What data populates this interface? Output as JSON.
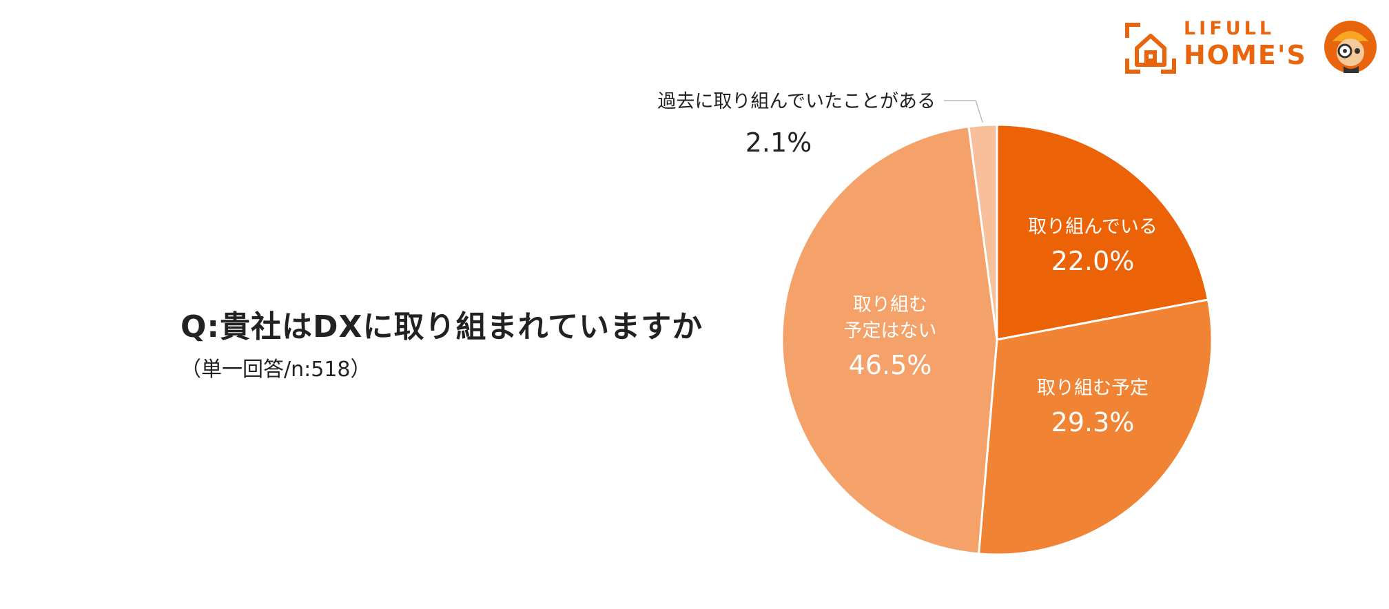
{
  "title": "Q:貴社はDXに取り組まれていますか",
  "subtitle": "（単一回答/n:518）",
  "brand": {
    "line1": "LIFULL",
    "line2": "HOME'S"
  },
  "colors": {
    "brand": "#E8650E"
  },
  "chart_data": {
    "type": "pie",
    "title": "Q:貴社はDXに取り組まれていますか",
    "unit": "%",
    "start_angle_deg": 0,
    "direction": "clockwise",
    "slices": [
      {
        "label_lines": [
          "取り組んでいる"
        ],
        "value": 22.0,
        "value_text": "22.0%",
        "color": "#EC6207",
        "label_color": "#ffffff"
      },
      {
        "label_lines": [
          "取り組む予定"
        ],
        "value": 29.3,
        "value_text": "29.3%",
        "color": "#F08434",
        "label_color": "#ffffff"
      },
      {
        "label_lines": [
          "取り組む",
          "予定はない"
        ],
        "value": 46.5,
        "value_text": "46.5%",
        "color": "#F4A269",
        "label_color": "#ffffff"
      },
      {
        "label_lines": [
          "過去に取り組んでいたことがある"
        ],
        "value": 2.1,
        "value_text": "2.1%",
        "color": "#F7C09B",
        "label_color": "#222222"
      }
    ]
  }
}
